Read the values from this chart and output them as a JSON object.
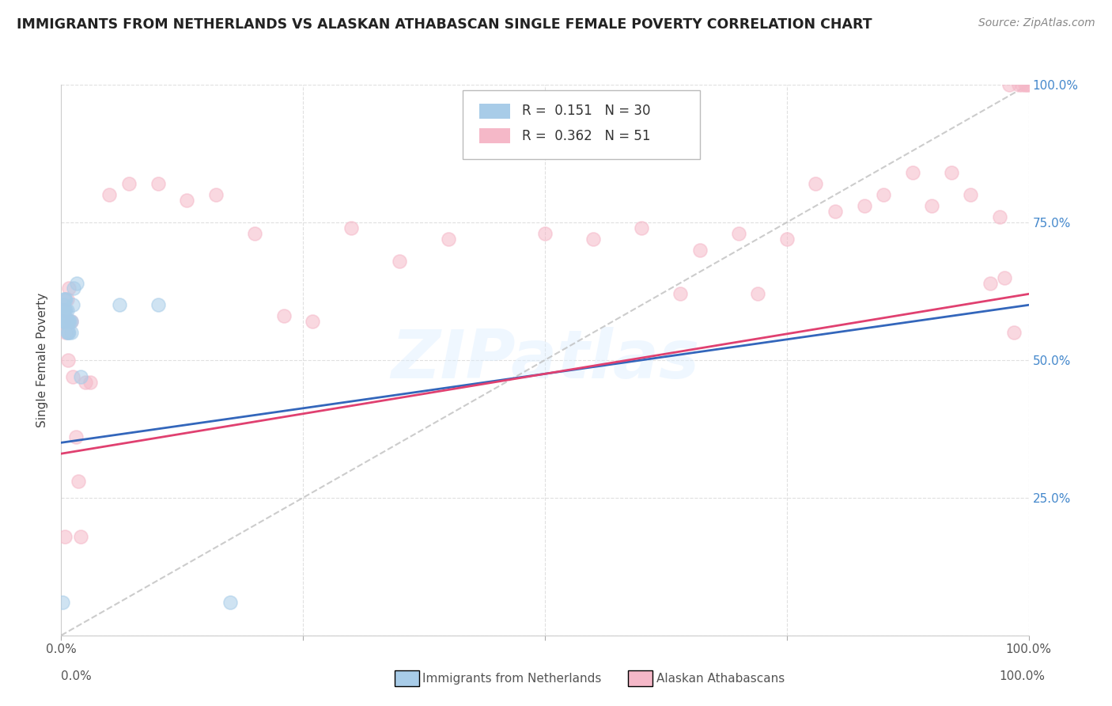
{
  "title": "IMMIGRANTS FROM NETHERLANDS VS ALASKAN ATHABASCAN SINGLE FEMALE POVERTY CORRELATION CHART",
  "source": "Source: ZipAtlas.com",
  "ylabel": "Single Female Poverty",
  "legend_label1": "Immigrants from Netherlands",
  "legend_label2": "Alaskan Athabascans",
  "R1": 0.151,
  "N1": 30,
  "R2": 0.362,
  "N2": 51,
  "blue_color": "#a8cce8",
  "pink_color": "#f5b8c8",
  "blue_line_color": "#3366bb",
  "pink_line_color": "#e04070",
  "dashed_color": "#bbbbbb",
  "watermark": "ZIPatlas",
  "blue_x": [
    0.001,
    0.002,
    0.002,
    0.002,
    0.003,
    0.003,
    0.003,
    0.004,
    0.004,
    0.004,
    0.005,
    0.005,
    0.005,
    0.006,
    0.006,
    0.006,
    0.007,
    0.007,
    0.008,
    0.008,
    0.009,
    0.01,
    0.01,
    0.012,
    0.013,
    0.016,
    0.02,
    0.06,
    0.1,
    0.175
  ],
  "blue_y": [
    0.06,
    0.57,
    0.59,
    0.6,
    0.57,
    0.59,
    0.61,
    0.57,
    0.59,
    0.61,
    0.57,
    0.59,
    0.61,
    0.55,
    0.57,
    0.59,
    0.55,
    0.57,
    0.55,
    0.57,
    0.57,
    0.55,
    0.57,
    0.6,
    0.63,
    0.64,
    0.47,
    0.6,
    0.6,
    0.06
  ],
  "pink_x": [
    0.002,
    0.003,
    0.004,
    0.005,
    0.006,
    0.007,
    0.008,
    0.01,
    0.012,
    0.015,
    0.018,
    0.02,
    0.025,
    0.03,
    0.05,
    0.07,
    0.1,
    0.13,
    0.16,
    0.2,
    0.23,
    0.26,
    0.3,
    0.35,
    0.4,
    0.5,
    0.55,
    0.6,
    0.64,
    0.66,
    0.7,
    0.72,
    0.75,
    0.78,
    0.8,
    0.83,
    0.85,
    0.88,
    0.9,
    0.92,
    0.94,
    0.96,
    0.97,
    0.975,
    0.98,
    0.985,
    0.99,
    0.993,
    0.996,
    0.998,
    1.0
  ],
  "pink_y": [
    0.57,
    0.59,
    0.18,
    0.55,
    0.61,
    0.5,
    0.63,
    0.57,
    0.47,
    0.36,
    0.28,
    0.18,
    0.46,
    0.46,
    0.8,
    0.82,
    0.82,
    0.79,
    0.8,
    0.73,
    0.58,
    0.57,
    0.74,
    0.68,
    0.72,
    0.73,
    0.72,
    0.74,
    0.62,
    0.7,
    0.73,
    0.62,
    0.72,
    0.82,
    0.77,
    0.78,
    0.8,
    0.84,
    0.78,
    0.84,
    0.8,
    0.64,
    0.76,
    0.65,
    1.0,
    0.55,
    1.0,
    1.0,
    1.0,
    1.0,
    1.0
  ]
}
